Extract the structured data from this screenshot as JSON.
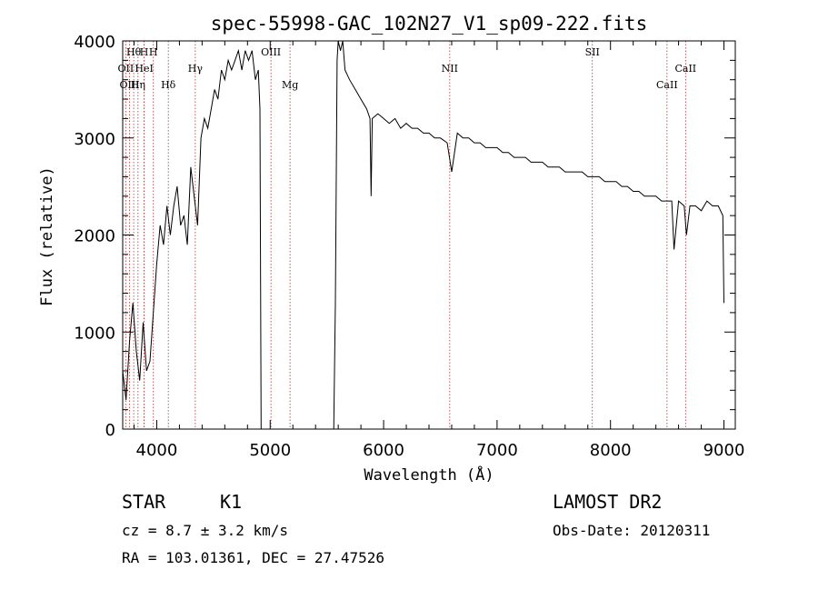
{
  "chart_data": {
    "type": "line",
    "title": "spec-55998-GAC_102N27_V1_sp09-222.fits",
    "xlabel": "Wavelength (Å)",
    "ylabel": "Flux (relative)",
    "xlim": [
      3700,
      9100
    ],
    "ylim": [
      0,
      4000
    ],
    "xticks": [
      4000,
      5000,
      6000,
      7000,
      8000,
      9000
    ],
    "yticks": [
      0,
      1000,
      2000,
      3000,
      4000
    ],
    "x": [
      3700,
      3730,
      3760,
      3790,
      3820,
      3850,
      3880,
      3910,
      3940,
      3970,
      4000,
      4030,
      4060,
      4090,
      4120,
      4150,
      4180,
      4210,
      4240,
      4270,
      4300,
      4330,
      4360,
      4390,
      4420,
      4450,
      4480,
      4510,
      4540,
      4570,
      4600,
      4630,
      4660,
      4690,
      4720,
      4750,
      4780,
      4810,
      4840,
      4870,
      4895,
      4910,
      4920,
      5560,
      5575,
      5590,
      5600,
      5620,
      5640,
      5660,
      5700,
      5750,
      5800,
      5850,
      5880,
      5890,
      5900,
      5950,
      6000,
      6050,
      6100,
      6150,
      6200,
      6250,
      6300,
      6350,
      6400,
      6450,
      6500,
      6560,
      6600,
      6650,
      6700,
      6750,
      6800,
      6850,
      6900,
      6950,
      7000,
      7050,
      7100,
      7150,
      7200,
      7250,
      7300,
      7350,
      7400,
      7450,
      7500,
      7550,
      7600,
      7650,
      7700,
      7750,
      7800,
      7850,
      7900,
      7950,
      8000,
      8050,
      8100,
      8150,
      8200,
      8250,
      8300,
      8350,
      8400,
      8450,
      8500,
      8540,
      8560,
      8600,
      8650,
      8670,
      8700,
      8750,
      8800,
      8850,
      8900,
      8950,
      8990,
      9000
    ],
    "y": [
      600,
      300,
      900,
      1300,
      800,
      500,
      1100,
      600,
      700,
      1200,
      1700,
      2100,
      1900,
      2300,
      2000,
      2300,
      2500,
      2100,
      2200,
      1900,
      2700,
      2400,
      2100,
      3000,
      3200,
      3100,
      3300,
      3500,
      3400,
      3700,
      3600,
      3800,
      3700,
      3800,
      3900,
      3700,
      3900,
      3800,
      3900,
      3600,
      3700,
      3300,
      0,
      0,
      1300,
      3800,
      4000,
      3900,
      4000,
      3700,
      3600,
      3500,
      3400,
      3300,
      3200,
      2400,
      3200,
      3250,
      3200,
      3150,
      3200,
      3100,
      3150,
      3100,
      3100,
      3050,
      3050,
      3000,
      3000,
      2950,
      2650,
      3050,
      3000,
      3000,
      2950,
      2950,
      2900,
      2900,
      2900,
      2850,
      2850,
      2800,
      2800,
      2800,
      2750,
      2750,
      2750,
      2700,
      2700,
      2700,
      2650,
      2650,
      2650,
      2650,
      2600,
      2600,
      2600,
      2550,
      2550,
      2550,
      2500,
      2500,
      2450,
      2450,
      2400,
      2400,
      2400,
      2350,
      2350,
      2350,
      1850,
      2350,
      2300,
      2000,
      2300,
      2300,
      2250,
      2350,
      2300,
      2300,
      2200,
      1300
    ],
    "lines": [
      {
        "label": "Hθ",
        "x": 3797,
        "row": 0
      },
      {
        "label": "H",
        "x": 3889,
        "row": 0
      },
      {
        "label": "OII",
        "x": 3727,
        "row": 1
      },
      {
        "label": "HeI",
        "x": 3889,
        "row": 1
      },
      {
        "label": "OIII",
        "x": 3760,
        "row": 2
      },
      {
        "label": "Hη",
        "x": 3835,
        "row": 2
      },
      {
        "label": "H",
        "x": 3970,
        "row": 0
      },
      {
        "label": "Hδ",
        "x": 4102,
        "row": 2
      },
      {
        "label": "Hγ",
        "x": 4340,
        "row": 1
      },
      {
        "label": "OIII",
        "x": 5007,
        "row": 0
      },
      {
        "label": "Mg",
        "x": 5175,
        "row": 2
      },
      {
        "label": "NII",
        "x": 6583,
        "row": 1
      },
      {
        "label": "SII",
        "x": 7840,
        "row": 0
      },
      {
        "label": "CaII",
        "x": 8662,
        "row": 1
      },
      {
        "label": "CaII",
        "x": 8498,
        "row": 2
      }
    ]
  },
  "footer": {
    "object_class": "STAR",
    "subclass": "K1",
    "survey": "LAMOST DR2",
    "cz": "cz = 8.7 ± 3.2 km/s",
    "obs_date": "Obs-Date: 20120311",
    "coords": "RA = 103.01361, DEC =  27.47526"
  }
}
